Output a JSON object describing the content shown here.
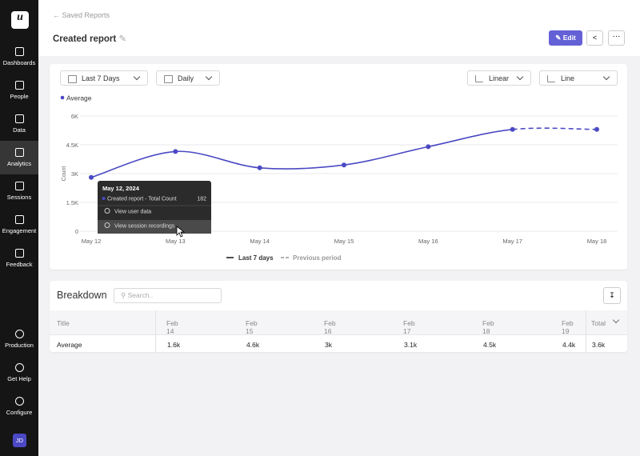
{
  "sidebar": {
    "logo": "u",
    "nav": [
      "Dashboards",
      "People",
      "Data",
      "Analytics",
      "Sessions",
      "Engagement",
      "Feedback"
    ],
    "active_index": 3,
    "bottom_nav": [
      "Production",
      "Get Help",
      "Configure"
    ],
    "avatar": "JD"
  },
  "header": {
    "breadcrumb": "Saved Reports",
    "title": "Created report",
    "edit_button": "Edit"
  },
  "filters": {
    "date_range": "Last 7 Days",
    "interval": "Daily",
    "scale": "Linear",
    "chart_style": "Line"
  },
  "chart_data": {
    "type": "line",
    "categories": [
      "May 12",
      "May 13",
      "May 14",
      "May 15",
      "May 16",
      "May 17",
      "May 18"
    ],
    "series": [
      {
        "name": "Average",
        "color": "#4b49c4",
        "values": [
          2800,
          4150,
          3300,
          3450,
          4400,
          5300,
          5300
        ]
      }
    ],
    "ylim": [
      0,
      6000
    ],
    "yticks": [
      0,
      {
        "value": 1500,
        "label": "1.5K"
      },
      {
        "value": 3000,
        "label": "3K"
      },
      {
        "value": 4500,
        "label": "4.5K"
      },
      {
        "value": 6000,
        "label": "6K"
      }
    ],
    "y_label": "Count",
    "grid": true,
    "dashed_last_segment": true,
    "legend_position": "top-left"
  },
  "tooltip": {
    "date": "May 12, 2024",
    "metric": "Created report - Total Count",
    "value": 182,
    "actions": [
      "View user data",
      "View session recordings"
    ]
  },
  "period_legend": [
    "Last 7 days",
    "Previous period"
  ],
  "breakdown": {
    "title": "Breakdown",
    "search_placeholder": "Search..",
    "table": {
      "columns": [
        "Title",
        "Feb 14",
        "Feb 15",
        "Feb 16",
        "Feb 17",
        "Feb 18",
        "Feb 19",
        "Total"
      ],
      "rows": [
        [
          "Average",
          "1.6k",
          "4.6k",
          "3k",
          "3.1k",
          "4.5k",
          "4.4k",
          "3.6k"
        ]
      ]
    }
  }
}
